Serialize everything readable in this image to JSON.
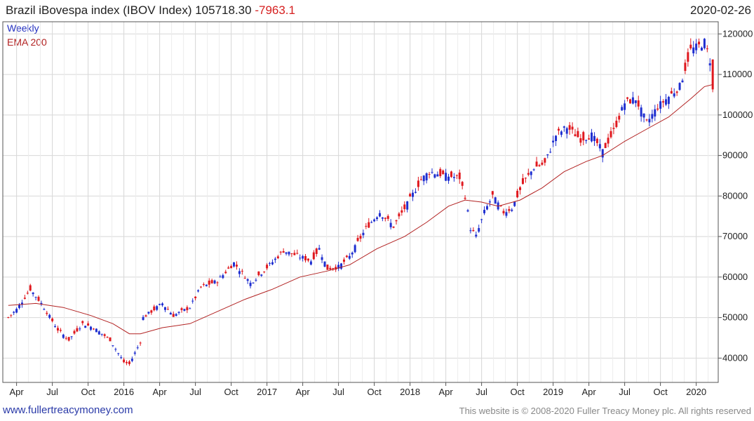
{
  "header": {
    "title": "Brazil iBovespa index (IBOV Index) 105718.30",
    "change": "-7963.1",
    "date": "2020-02-26"
  },
  "footer": {
    "site": "www.fullertreacymoney.com",
    "copyright": "This website is © 2008-2020 Fuller Treacy Money plc. All rights reserved"
  },
  "colors": {
    "up": "#1f2fd0",
    "down": "#e0181e",
    "ema": "#b22222",
    "grid": "#d8d8d8"
  },
  "chart_data": {
    "type": "candlestick",
    "title": "Brazil iBovespa index (IBOV Index)",
    "interval_label": "Weekly",
    "ema_label": "EMA 200",
    "ylim": [
      34000,
      123000
    ],
    "yticks": [
      40000,
      50000,
      60000,
      70000,
      80000,
      90000,
      100000,
      110000,
      120000
    ],
    "ytick_labels": [
      "40000",
      "50000",
      "60000",
      "70000",
      "80000",
      "90000",
      "100000",
      "110000",
      "120000"
    ],
    "xlim_weeks": [
      -2,
      258
    ],
    "xticks": [
      {
        "label": "Apr",
        "week": 3
      },
      {
        "label": "Jul",
        "week": 16
      },
      {
        "label": "Oct",
        "week": 29
      },
      {
        "label": "2016",
        "week": 42
      },
      {
        "label": "Apr",
        "week": 55
      },
      {
        "label": "Jul",
        "week": 68
      },
      {
        "label": "Oct",
        "week": 81
      },
      {
        "label": "2017",
        "week": 94
      },
      {
        "label": "Apr",
        "week": 107
      },
      {
        "label": "Jul",
        "week": 120
      },
      {
        "label": "Oct",
        "week": 133
      },
      {
        "label": "2018",
        "week": 146
      },
      {
        "label": "Apr",
        "week": 159
      },
      {
        "label": "Jul",
        "week": 172
      },
      {
        "label": "Oct",
        "week": 185
      },
      {
        "label": "2019",
        "week": 198
      },
      {
        "label": "Apr",
        "week": 211
      },
      {
        "label": "Jul",
        "week": 224
      },
      {
        "label": "Oct",
        "week": 237
      },
      {
        "label": "2020",
        "week": 250
      }
    ],
    "close_anchors": [
      [
        0,
        50000
      ],
      [
        3,
        52000
      ],
      [
        8,
        57000
      ],
      [
        12,
        53500
      ],
      [
        18,
        47000
      ],
      [
        22,
        44500
      ],
      [
        27,
        48500
      ],
      [
        31,
        47500
      ],
      [
        37,
        44500
      ],
      [
        42,
        39000
      ],
      [
        44,
        38500
      ],
      [
        48,
        44000
      ],
      [
        49,
        50000
      ],
      [
        56,
        53500
      ],
      [
        60,
        50500
      ],
      [
        66,
        52500
      ],
      [
        70,
        57500
      ],
      [
        76,
        59000
      ],
      [
        82,
        63500
      ],
      [
        88,
        58500
      ],
      [
        95,
        63000
      ],
      [
        100,
        66500
      ],
      [
        106,
        65000
      ],
      [
        110,
        64000
      ],
      [
        113,
        67000
      ],
      [
        116,
        62000
      ],
      [
        120,
        62500
      ],
      [
        124,
        65000
      ],
      [
        130,
        72000
      ],
      [
        135,
        76000
      ],
      [
        140,
        72500
      ],
      [
        145,
        78000
      ],
      [
        150,
        84000
      ],
      [
        153,
        86000
      ],
      [
        159,
        85000
      ],
      [
        164,
        84500
      ],
      [
        166,
        80000
      ],
      [
        168,
        72000
      ],
      [
        170,
        70000
      ],
      [
        173,
        76000
      ],
      [
        176,
        80000
      ],
      [
        180,
        76000
      ],
      [
        183,
        77000
      ],
      [
        187,
        83000
      ],
      [
        191,
        87000
      ],
      [
        195,
        88000
      ],
      [
        199,
        95000
      ],
      [
        203,
        97000
      ],
      [
        208,
        94000
      ],
      [
        212,
        95000
      ],
      [
        216,
        91000
      ],
      [
        220,
        96000
      ],
      [
        224,
        103000
      ],
      [
        228,
        104000
      ],
      [
        232,
        98000
      ],
      [
        236,
        102000
      ],
      [
        240,
        104500
      ],
      [
        244,
        107000
      ],
      [
        248,
        116000
      ],
      [
        251,
        117000
      ],
      [
        253,
        118000
      ],
      [
        255,
        113500
      ],
      [
        256,
        106000
      ]
    ],
    "ema_points": [
      [
        0,
        53000
      ],
      [
        10,
        53500
      ],
      [
        20,
        52500
      ],
      [
        30,
        50500
      ],
      [
        38,
        48500
      ],
      [
        44,
        46000
      ],
      [
        48,
        46000
      ],
      [
        56,
        47500
      ],
      [
        66,
        48500
      ],
      [
        76,
        51500
      ],
      [
        86,
        54500
      ],
      [
        96,
        57000
      ],
      [
        106,
        60000
      ],
      [
        116,
        61500
      ],
      [
        124,
        63000
      ],
      [
        134,
        67000
      ],
      [
        144,
        70000
      ],
      [
        152,
        73500
      ],
      [
        160,
        77500
      ],
      [
        166,
        79000
      ],
      [
        172,
        78500
      ],
      [
        178,
        77500
      ],
      [
        186,
        79000
      ],
      [
        194,
        82000
      ],
      [
        202,
        86000
      ],
      [
        210,
        88500
      ],
      [
        216,
        90000
      ],
      [
        224,
        93500
      ],
      [
        232,
        96500
      ],
      [
        240,
        99500
      ],
      [
        248,
        104000
      ],
      [
        253,
        107000
      ],
      [
        256,
        107500
      ]
    ]
  }
}
